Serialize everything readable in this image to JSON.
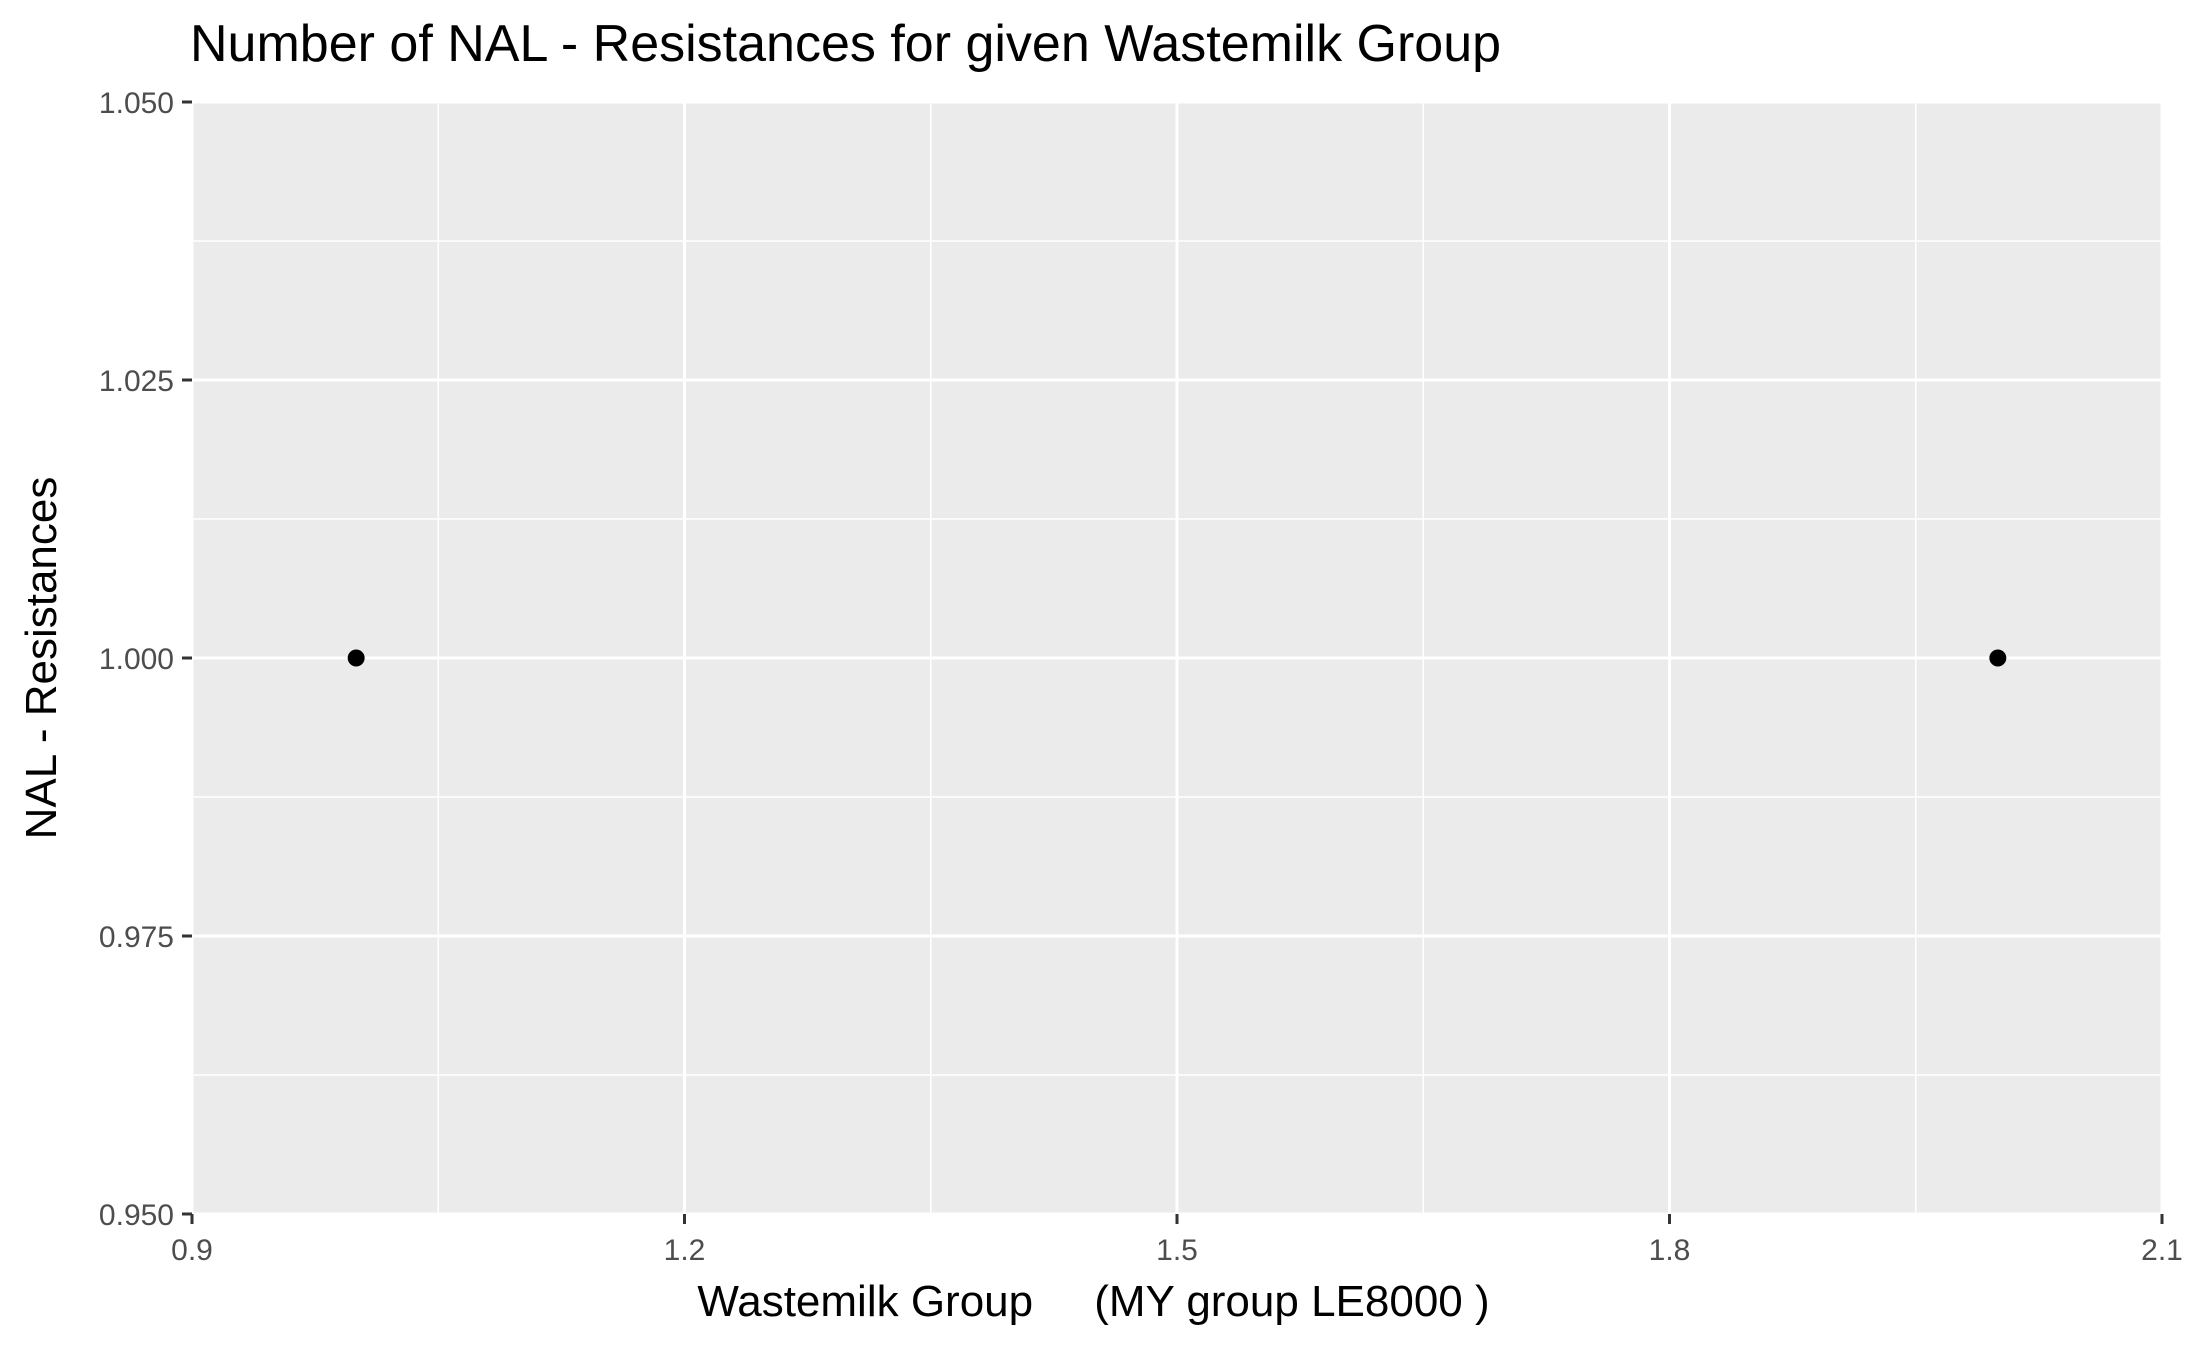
{
  "chart_data": {
    "type": "scatter",
    "title": "Number of NAL - Resistances for given Wastemilk Group",
    "xlabel": "Wastemilk Group     (MY group LE8000 )",
    "ylabel": "NAL - Resistances",
    "xlim": [
      0.9,
      2.1
    ],
    "ylim": [
      0.95,
      1.05
    ],
    "x_ticks": [
      0.9,
      1.2,
      1.5,
      1.8,
      2.1
    ],
    "x_tick_labels": [
      "0.9",
      "1.2",
      "1.5",
      "1.8",
      "2.1"
    ],
    "y_ticks": [
      0.95,
      0.975,
      1.0,
      1.025,
      1.05
    ],
    "y_tick_labels": [
      "0.950",
      "0.975",
      "1.000",
      "1.025",
      "1.050"
    ],
    "grid": true,
    "points": [
      {
        "x": 1.0,
        "y": 1.0
      },
      {
        "x": 2.0,
        "y": 1.0
      }
    ],
    "colors": {
      "panel_background": "#EBEBEB",
      "grid_major": "#FFFFFF",
      "point": "#000000",
      "tick_text": "#4D4D4D"
    }
  }
}
